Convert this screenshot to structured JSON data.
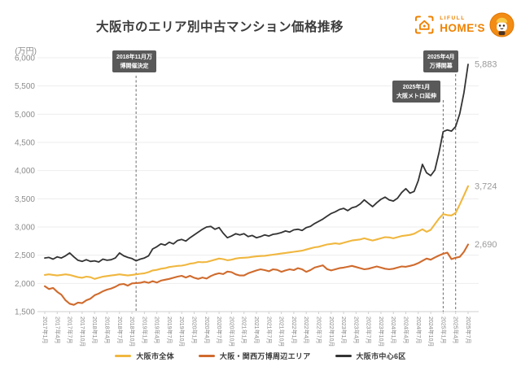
{
  "header": {
    "title": "大阪市のエリア別中古マンション価格推移",
    "logo": {
      "brand_top": "LIFULL",
      "brand_bottom": "HOME'S",
      "brand_color": "#EF8200"
    }
  },
  "chart_data": {
    "type": "line",
    "title": "大阪市のエリア別中古マンション価格推移",
    "unit_label": "(万円)",
    "ylim": [
      1500,
      6000
    ],
    "ytick_step": 500,
    "grid": "horizontal",
    "legend_position": "bottom",
    "x_start": "2017年1月",
    "x_end": "2025年7月",
    "x_interval": "monthly",
    "xtick_labels": [
      "2017年1月",
      "2017年4月",
      "2017年7月",
      "2017年10月",
      "2018年1月",
      "2018年4月",
      "2018年7月",
      "2018年10月",
      "2019年1月",
      "2019年4月",
      "2019年7月",
      "2019年10月",
      "2020年1月",
      "2020年4月",
      "2020年7月",
      "2020年10月",
      "2021年1月",
      "2021年4月",
      "2021年7月",
      "2021年10月",
      "2022年1月",
      "2022年4月",
      "2022年7月",
      "2022年10月",
      "2023年1月",
      "2023年4月",
      "2023年7月",
      "2023年10月",
      "2024年1月",
      "2024年4月",
      "2024年7月",
      "2024年10月",
      "2025年1月",
      "2025年4月",
      "2025年7月"
    ],
    "series": [
      {
        "name": "大阪市全体",
        "color": "#F0B73F",
        "end_label": "3,724",
        "values": [
          2150,
          2160,
          2150,
          2140,
          2150,
          2160,
          2150,
          2130,
          2110,
          2100,
          2120,
          2110,
          2080,
          2100,
          2120,
          2130,
          2140,
          2150,
          2160,
          2150,
          2140,
          2150,
          2160,
          2170,
          2180,
          2200,
          2230,
          2240,
          2260,
          2270,
          2290,
          2300,
          2310,
          2315,
          2330,
          2350,
          2360,
          2380,
          2375,
          2380,
          2400,
          2420,
          2440,
          2430,
          2410,
          2420,
          2440,
          2450,
          2455,
          2460,
          2470,
          2480,
          2485,
          2490,
          2500,
          2510,
          2520,
          2530,
          2540,
          2550,
          2560,
          2570,
          2580,
          2600,
          2620,
          2640,
          2650,
          2670,
          2690,
          2700,
          2710,
          2700,
          2720,
          2740,
          2760,
          2770,
          2780,
          2800,
          2780,
          2760,
          2780,
          2800,
          2820,
          2815,
          2800,
          2820,
          2840,
          2850,
          2860,
          2880,
          2920,
          2960,
          2915,
          2950,
          3050,
          3150,
          3230,
          3210,
          3205,
          3250,
          3400,
          3560,
          3724
        ]
      },
      {
        "name": "大阪・関西万博周辺エリア",
        "color": "#D06B2D",
        "end_label": "2,690",
        "values": [
          1950,
          1900,
          1920,
          1850,
          1800,
          1700,
          1640,
          1620,
          1660,
          1650,
          1700,
          1730,
          1790,
          1820,
          1860,
          1890,
          1910,
          1940,
          1980,
          1990,
          1960,
          2000,
          2005,
          2010,
          2030,
          2010,
          2040,
          2015,
          2050,
          2065,
          2080,
          2100,
          2120,
          2135,
          2105,
          2135,
          2100,
          2080,
          2105,
          2085,
          2130,
          2160,
          2180,
          2165,
          2210,
          2200,
          2160,
          2140,
          2140,
          2180,
          2205,
          2230,
          2250,
          2235,
          2215,
          2250,
          2240,
          2205,
          2230,
          2250,
          2235,
          2270,
          2250,
          2205,
          2235,
          2280,
          2300,
          2320,
          2255,
          2230,
          2250,
          2270,
          2280,
          2295,
          2310,
          2290,
          2270,
          2250,
          2260,
          2280,
          2300,
          2280,
          2260,
          2250,
          2260,
          2280,
          2300,
          2295,
          2310,
          2330,
          2360,
          2400,
          2440,
          2420,
          2460,
          2495,
          2525,
          2545,
          2430,
          2455,
          2470,
          2560,
          2690
        ]
      },
      {
        "name": "大阪市中心6区",
        "color": "#333333",
        "end_label": "5,883",
        "values": [
          2450,
          2460,
          2430,
          2470,
          2450,
          2490,
          2540,
          2470,
          2410,
          2390,
          2420,
          2390,
          2400,
          2380,
          2430,
          2410,
          2420,
          2450,
          2540,
          2490,
          2460,
          2440,
          2400,
          2430,
          2450,
          2490,
          2610,
          2650,
          2700,
          2680,
          2730,
          2700,
          2760,
          2780,
          2750,
          2810,
          2860,
          2910,
          2960,
          3000,
          3010,
          2960,
          2990,
          2890,
          2810,
          2840,
          2880,
          2860,
          2880,
          2830,
          2850,
          2810,
          2830,
          2860,
          2840,
          2870,
          2880,
          2900,
          2930,
          2910,
          2950,
          2960,
          2940,
          2990,
          3010,
          3060,
          3100,
          3140,
          3190,
          3240,
          3270,
          3310,
          3330,
          3290,
          3340,
          3360,
          3410,
          3480,
          3420,
          3360,
          3430,
          3490,
          3530,
          3480,
          3460,
          3510,
          3610,
          3680,
          3600,
          3630,
          3820,
          4110,
          3960,
          3910,
          4010,
          4320,
          4690,
          4720,
          4700,
          4780,
          5010,
          5380,
          5883
        ]
      }
    ],
    "annotations": [
      {
        "line1": "2018年11月万",
        "line2": "博開催決定",
        "month_index": 22
      },
      {
        "line1": "2025年1月",
        "line2": "大阪メトロ延伸",
        "month_index": 96
      },
      {
        "line1": "2025年4月",
        "line2": "万博開幕",
        "month_index": 99
      }
    ]
  }
}
